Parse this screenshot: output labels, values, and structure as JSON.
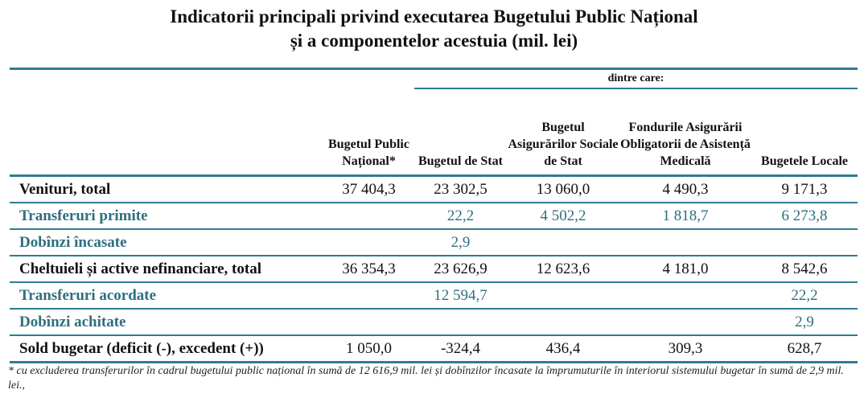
{
  "title": {
    "line1": "Indicatorii principali privind executarea Bugetului Public Național",
    "line2": "și a componentelor acestuia (mil. lei)"
  },
  "header": {
    "group": "dintre care:",
    "columns": [
      "Bugetul Public Național*",
      "Bugetul de Stat",
      "Bugetul Asigurărilor Sociale de Stat",
      "Fondurile Asigurării Obligatorii de Asistență Medicală",
      "Bugetele Locale"
    ]
  },
  "rows": [
    {
      "label": "Venituri, total",
      "values": [
        "37 404,3",
        "23 302,5",
        "13 060,0",
        "4 490,3",
        "9 171,3"
      ]
    },
    {
      "label": "Transferuri primite",
      "values": [
        "",
        "22,2",
        "4 502,2",
        "1 818,7",
        "6 273,8"
      ]
    },
    {
      "label": "Dobînzi încasate",
      "values": [
        "",
        "2,9",
        "",
        "",
        ""
      ]
    },
    {
      "label": "Cheltuieli și active nefinanciare, total",
      "values": [
        "36 354,3",
        "23 626,9",
        "12 623,6",
        "4 181,0",
        "8 542,6"
      ]
    },
    {
      "label": "Transferuri acordate",
      "values": [
        "",
        "12 594,7",
        "",
        "",
        "22,2"
      ]
    },
    {
      "label": "Dobînzi achitate",
      "values": [
        "",
        "",
        "",
        "",
        "2,9"
      ]
    },
    {
      "label": "Sold bugetar (deficit (-), excedent (+))",
      "values": [
        "1 050,0",
        "-324,4",
        "436,4",
        "309,3",
        "628,7"
      ]
    }
  ],
  "footnote": "* cu excluderea transferurilor în cadrul bugetului public național în sumă de 12 616,9 mil. lei și dobînzilor încasate la împrumuturile în interiorul sistemului bugetar în sumă de 2,9 mil. lei.,",
  "colors": {
    "accent": "#2f7c8f",
    "sub_text": "#2f6e80"
  }
}
